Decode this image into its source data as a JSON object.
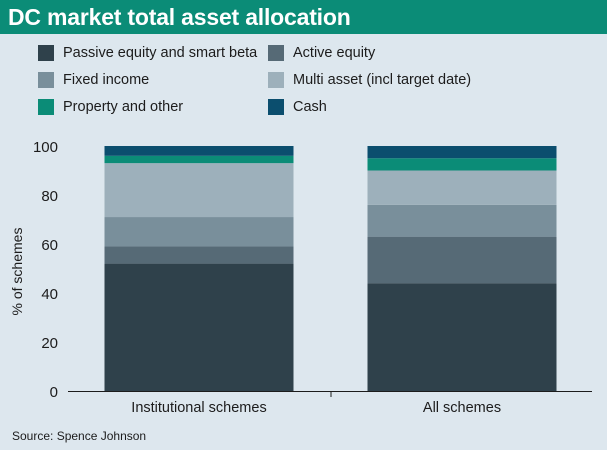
{
  "title": "DC market total asset allocation",
  "source": "Source: Spence Johnson",
  "colors": {
    "header_bg": "#0b8c77",
    "background": "#dde7ee",
    "series": [
      "#2f414b",
      "#566a76",
      "#798f9b",
      "#9db0bb",
      "#0b8c77",
      "#0b4e6e"
    ]
  },
  "legend": [
    {
      "label": "Passive equity and smart beta"
    },
    {
      "label": "Active equity"
    },
    {
      "label": "Fixed income"
    },
    {
      "label": "Multi asset (incl target date)"
    },
    {
      "label": "Property and other"
    },
    {
      "label": "Cash"
    }
  ],
  "chart_data": {
    "type": "bar",
    "stacked": true,
    "title": "DC market total asset allocation",
    "categories": [
      "Institutional schemes",
      "All schemes"
    ],
    "series": [
      {
        "name": "Passive equity and smart beta",
        "values": [
          52,
          44
        ]
      },
      {
        "name": "Active equity",
        "values": [
          7,
          19
        ]
      },
      {
        "name": "Fixed income",
        "values": [
          12,
          13
        ]
      },
      {
        "name": "Multi asset (incl target date)",
        "values": [
          22,
          14
        ]
      },
      {
        "name": "Property and other",
        "values": [
          3,
          5
        ]
      },
      {
        "name": "Cash",
        "values": [
          4,
          5
        ]
      }
    ],
    "ylabel": "% of schemes",
    "xlabel": "",
    "ylim": [
      0,
      100
    ],
    "yticks": [
      0,
      20,
      40,
      60,
      80,
      100
    ],
    "grid": false,
    "legend_position": "top"
  }
}
